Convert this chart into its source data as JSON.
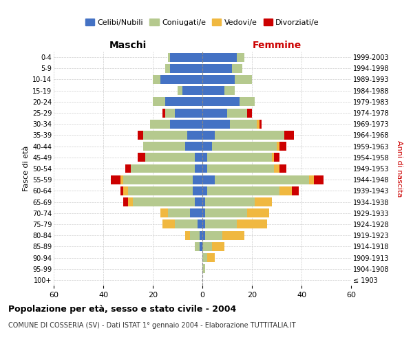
{
  "age_groups": [
    "100+",
    "95-99",
    "90-94",
    "85-89",
    "80-84",
    "75-79",
    "70-74",
    "65-69",
    "60-64",
    "55-59",
    "50-54",
    "45-49",
    "40-44",
    "35-39",
    "30-34",
    "25-29",
    "20-24",
    "15-19",
    "10-14",
    "5-9",
    "0-4"
  ],
  "birth_years": [
    "≤ 1903",
    "1904-1908",
    "1909-1913",
    "1914-1918",
    "1919-1923",
    "1924-1928",
    "1929-1933",
    "1934-1938",
    "1939-1943",
    "1944-1948",
    "1949-1953",
    "1954-1958",
    "1959-1963",
    "1964-1968",
    "1969-1973",
    "1974-1978",
    "1979-1983",
    "1984-1988",
    "1989-1993",
    "1994-1998",
    "1999-2003"
  ],
  "colors": {
    "celibe": "#4472c4",
    "coniugato": "#b5c98e",
    "vedovo": "#f0b840",
    "divorziato": "#cc0000"
  },
  "males": {
    "celibe": [
      0,
      0,
      0,
      1,
      1,
      2,
      5,
      3,
      4,
      4,
      3,
      3,
      7,
      6,
      13,
      11,
      15,
      8,
      17,
      13,
      13
    ],
    "coniugato": [
      0,
      0,
      0,
      2,
      4,
      9,
      9,
      25,
      26,
      28,
      26,
      20,
      17,
      18,
      8,
      4,
      5,
      2,
      3,
      2,
      1
    ],
    "vedovo": [
      0,
      0,
      0,
      0,
      2,
      5,
      3,
      2,
      2,
      1,
      0,
      0,
      0,
      0,
      0,
      0,
      0,
      0,
      0,
      0,
      0
    ],
    "divorziato": [
      0,
      0,
      0,
      0,
      0,
      0,
      0,
      2,
      1,
      4,
      2,
      3,
      0,
      2,
      0,
      1,
      0,
      0,
      0,
      0,
      0
    ]
  },
  "females": {
    "nubile": [
      0,
      0,
      0,
      0,
      1,
      1,
      1,
      1,
      2,
      5,
      2,
      2,
      4,
      5,
      11,
      10,
      15,
      9,
      13,
      12,
      14
    ],
    "coniugata": [
      0,
      1,
      2,
      4,
      7,
      13,
      17,
      20,
      29,
      38,
      27,
      26,
      26,
      28,
      11,
      8,
      6,
      4,
      7,
      4,
      3
    ],
    "vedova": [
      0,
      0,
      3,
      5,
      9,
      12,
      9,
      7,
      5,
      2,
      2,
      1,
      1,
      0,
      1,
      0,
      0,
      0,
      0,
      0,
      0
    ],
    "divorziata": [
      0,
      0,
      0,
      0,
      0,
      0,
      0,
      0,
      3,
      4,
      3,
      2,
      3,
      4,
      1,
      2,
      0,
      0,
      0,
      0,
      0
    ]
  },
  "xlim": 60,
  "title": "Popolazione per età, sesso e stato civile - 2004",
  "subtitle": "COMUNE DI COSSERIA (SV) - Dati ISTAT 1° gennaio 2004 - Elaborazione TUTTITALIA.IT",
  "xlabel_left": "Maschi",
  "xlabel_right": "Femmine",
  "ylabel_left": "Fasce di età",
  "ylabel_right": "Anni di nascita",
  "legend_labels": [
    "Celibi/Nubili",
    "Coniugati/e",
    "Vedovi/e",
    "Divorziati/e"
  ],
  "background_color": "#ffffff",
  "grid_color": "#cccccc"
}
